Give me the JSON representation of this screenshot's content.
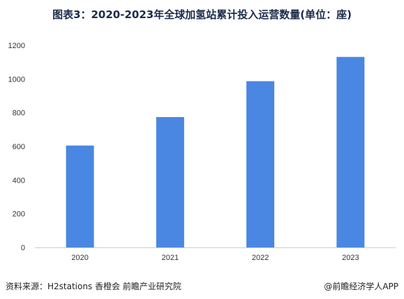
{
  "title": "图表3：2020-2023年全球加氢站累计投入运营数量(单位：座)",
  "source": "资料来源：H2stations 香橙会 前瞻产业研究院",
  "credit": "@前瞻经济学人APP",
  "colors": {
    "bar": "#4a87e2",
    "axis": "#cccccc"
  },
  "chart_data": {
    "type": "bar",
    "categories": [
      "2020",
      "2021",
      "2022",
      "2023"
    ],
    "values": [
      605,
      774,
      987,
      1131
    ],
    "ylim": [
      0,
      1200
    ],
    "yticks": [
      0,
      200,
      400,
      600,
      800,
      1000,
      1200
    ],
    "grid": false,
    "legend": "none"
  }
}
